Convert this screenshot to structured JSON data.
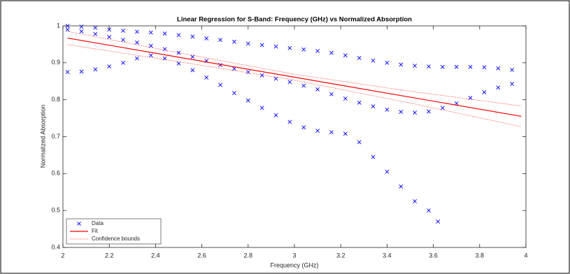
{
  "chart_data": {
    "type": "scatter",
    "title": "Linear Regression for S-Band: Frequency (GHz) vs Normalized Absorption",
    "xlabel": "Frequency (GHz)",
    "ylabel": "Normalized Absorption",
    "xlim": [
      2,
      4
    ],
    "ylim": [
      0.4,
      1
    ],
    "xticks": [
      2,
      2.2,
      2.4,
      2.6,
      2.8,
      3,
      3.2,
      3.4,
      3.6,
      3.8,
      4
    ],
    "yticks": [
      0.4,
      0.5,
      0.6,
      0.7,
      0.8,
      0.9,
      1
    ],
    "legend": "lower left",
    "series": [
      {
        "name": "Data",
        "color": "#0000ff",
        "marker": "x",
        "x": [
          2.02,
          2.08,
          2.14,
          2.2,
          2.26,
          2.32,
          2.38,
          2.44,
          2.5,
          2.56,
          2.62,
          2.68,
          2.74,
          2.8,
          2.86,
          2.92,
          2.98,
          3.04,
          3.1,
          3.16,
          3.22,
          3.28,
          3.34,
          3.4,
          3.46,
          3.52,
          3.58,
          3.64,
          3.7,
          3.76,
          3.82,
          3.88,
          3.94,
          2.02,
          2.08,
          2.14,
          2.2,
          2.26,
          2.32,
          2.38,
          2.44,
          2.5,
          2.56,
          2.62,
          2.68,
          2.74,
          2.8,
          2.86,
          2.92,
          2.98,
          3.04,
          3.1,
          3.16,
          3.22,
          3.28,
          3.34,
          3.4,
          3.46,
          3.52,
          3.58,
          3.64,
          3.7,
          3.76,
          3.82,
          3.88,
          3.94,
          2.02,
          2.08,
          2.14,
          2.2,
          2.26,
          2.32,
          2.38,
          2.44,
          2.5,
          2.56,
          2.62,
          2.68,
          2.74,
          2.8,
          2.86,
          2.92,
          2.98,
          3.04,
          3.1,
          3.16,
          3.22,
          3.28,
          3.34,
          3.4,
          3.46,
          3.52,
          3.58,
          3.62
        ],
        "y": [
          1.0,
          0.998,
          0.995,
          0.99,
          0.987,
          0.984,
          0.982,
          0.979,
          0.975,
          0.971,
          0.966,
          0.962,
          0.957,
          0.952,
          0.948,
          0.944,
          0.94,
          0.936,
          0.932,
          0.927,
          0.92,
          0.913,
          0.906,
          0.9,
          0.895,
          0.892,
          0.89,
          0.889,
          0.889,
          0.889,
          0.888,
          0.885,
          0.881,
          0.99,
          0.985,
          0.978,
          0.97,
          0.962,
          0.955,
          0.946,
          0.937,
          0.927,
          0.916,
          0.905,
          0.894,
          0.884,
          0.875,
          0.866,
          0.857,
          0.848,
          0.838,
          0.828,
          0.815,
          0.803,
          0.792,
          0.782,
          0.773,
          0.767,
          0.765,
          0.768,
          0.778,
          0.79,
          0.805,
          0.82,
          0.833,
          0.843,
          0.875,
          0.876,
          0.882,
          0.89,
          0.9,
          0.912,
          0.92,
          0.912,
          0.898,
          0.88,
          0.86,
          0.84,
          0.818,
          0.798,
          0.778,
          0.758,
          0.74,
          0.725,
          0.716,
          0.712,
          0.708,
          0.685,
          0.645,
          0.605,
          0.565,
          0.525,
          0.5,
          0.47
        ]
      },
      {
        "name": "Fit",
        "color": "#ff0000",
        "style": "solid",
        "x": [
          2.02,
          3.98
        ],
        "y": [
          0.967,
          0.755
        ]
      },
      {
        "name": "Confidence bounds",
        "color": "#ff0000",
        "style": "dotted",
        "x": [
          2.02,
          2.5,
          3.0,
          3.5,
          3.98
        ],
        "upper": [
          0.985,
          0.927,
          0.869,
          0.823,
          0.783
        ],
        "lower": [
          0.949,
          0.903,
          0.853,
          0.791,
          0.727
        ]
      }
    ]
  }
}
